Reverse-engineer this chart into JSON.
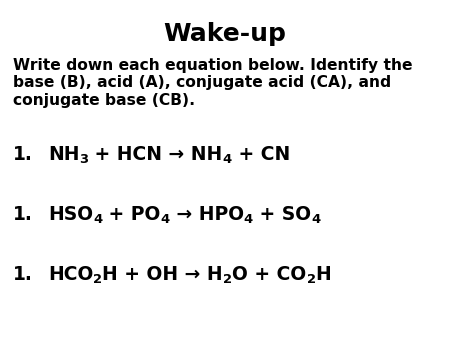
{
  "title": "Wake-up",
  "title_fontsize": 18,
  "background_color": "#ffffff",
  "text_color": "#000000",
  "instructions_line1": "Write down each equation below. Identify the",
  "instructions_line2": "base (B), acid (A), conjugate acid (CA), and",
  "instructions_line3": "conjugate base (CB).",
  "instr_fontsize": 11.2,
  "eq_fontsize": 13.5,
  "sub_scale": 0.7,
  "sub_drop": 4.5,
  "equations": [
    {
      "label": "1.",
      "segments": [
        {
          "t": "NH",
          "s": false
        },
        {
          "t": "3",
          "s": true
        },
        {
          "t": " + HCN → NH",
          "s": false
        },
        {
          "t": "4",
          "s": true
        },
        {
          "t": " + CN",
          "s": false
        }
      ]
    },
    {
      "label": "1.",
      "segments": [
        {
          "t": "HSO",
          "s": false
        },
        {
          "t": "4",
          "s": true
        },
        {
          "t": " + PO",
          "s": false
        },
        {
          "t": "4",
          "s": true
        },
        {
          "t": " → HPO",
          "s": false
        },
        {
          "t": "4",
          "s": true
        },
        {
          "t": " + SO",
          "s": false
        },
        {
          "t": "4",
          "s": true
        }
      ]
    },
    {
      "label": "1.",
      "segments": [
        {
          "t": "HCO",
          "s": false
        },
        {
          "t": "2",
          "s": true
        },
        {
          "t": "H + OH → H",
          "s": false
        },
        {
          "t": "2",
          "s": true
        },
        {
          "t": "O + CO",
          "s": false
        },
        {
          "t": "2",
          "s": true
        },
        {
          "t": "H",
          "s": false
        }
      ]
    }
  ]
}
